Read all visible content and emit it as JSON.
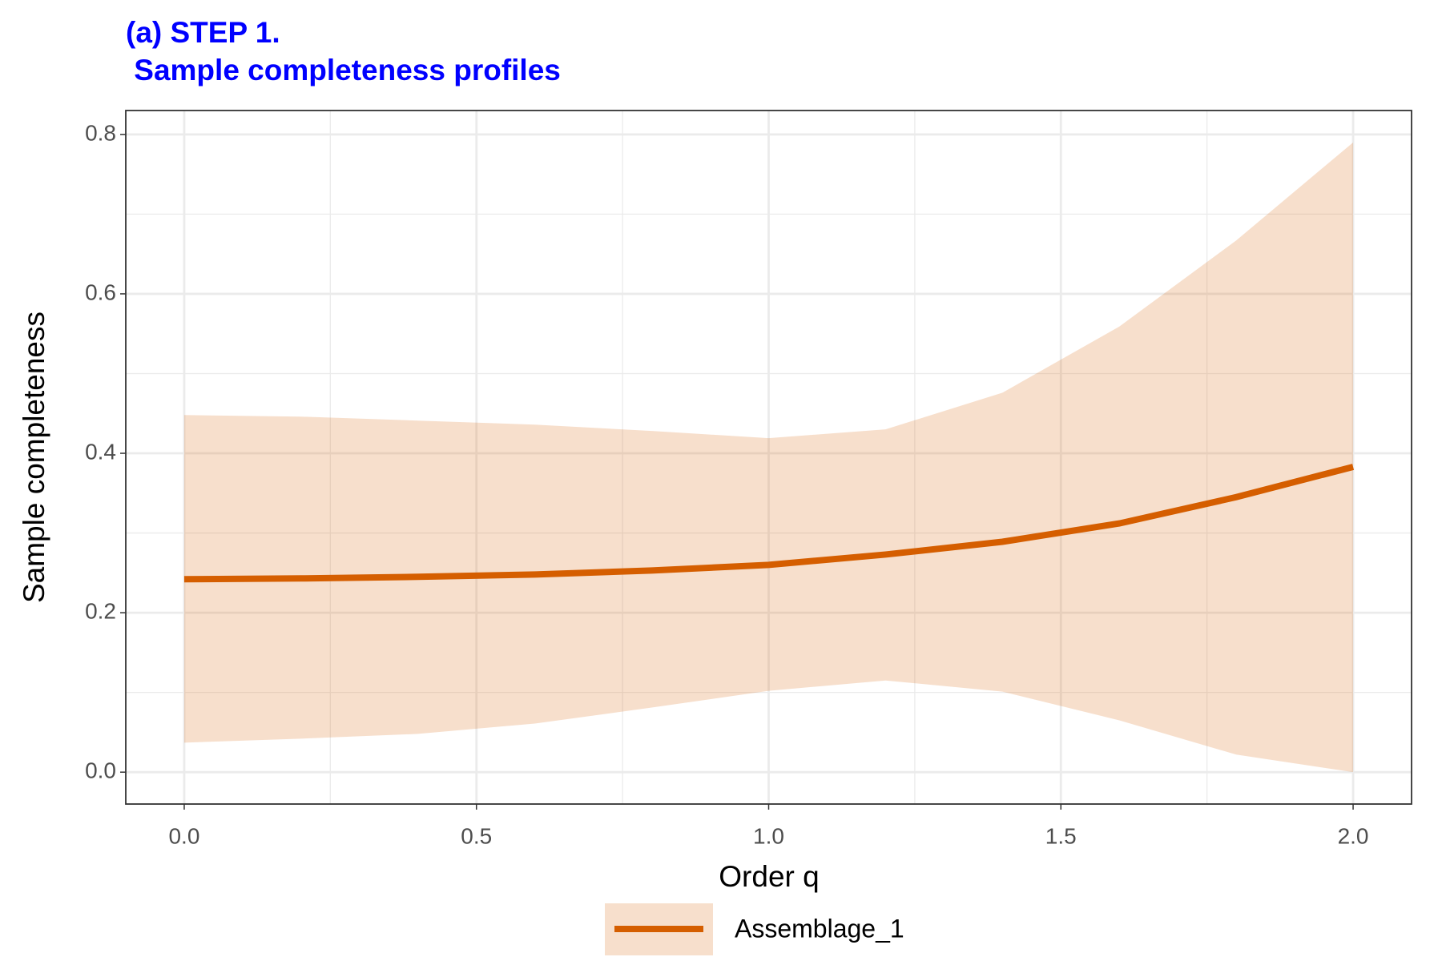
{
  "chart_data": {
    "type": "line",
    "title": [
      "(a) STEP 1.",
      " Sample completeness profiles"
    ],
    "title_color": "#0000ff",
    "x_label": "Order q",
    "y_label": "Sample completeness",
    "x": [
      0,
      0.2,
      0.4,
      0.6,
      0.8,
      1.0,
      1.2,
      1.4,
      1.6,
      1.8,
      2.0
    ],
    "series": [
      {
        "name": "Assemblage_1",
        "color": "#d55e00",
        "values": [
          0.242,
          0.243,
          0.245,
          0.248,
          0.253,
          0.26,
          0.273,
          0.289,
          0.312,
          0.345,
          0.383
        ],
        "lower": [
          0.037,
          0.042,
          0.048,
          0.061,
          0.081,
          0.102,
          0.115,
          0.101,
          0.065,
          0.022,
          0.0
        ],
        "upper": [
          0.448,
          0.446,
          0.441,
          0.436,
          0.428,
          0.419,
          0.43,
          0.476,
          0.559,
          0.667,
          0.79
        ]
      }
    ],
    "xlim": [
      -0.1,
      2.1
    ],
    "ylim": [
      -0.04,
      0.83
    ],
    "xticks": [
      {
        "value": 0,
        "label": "0.0"
      },
      0.5,
      {
        "value": 1,
        "label": "1.0"
      },
      1.5,
      {
        "value": 2,
        "label": "2.0"
      }
    ],
    "yticks": [
      {
        "value": 0,
        "label": "0.0"
      },
      0.2,
      0.4,
      0.6,
      0.8
    ],
    "grid": true,
    "legend_position": "bottom"
  }
}
